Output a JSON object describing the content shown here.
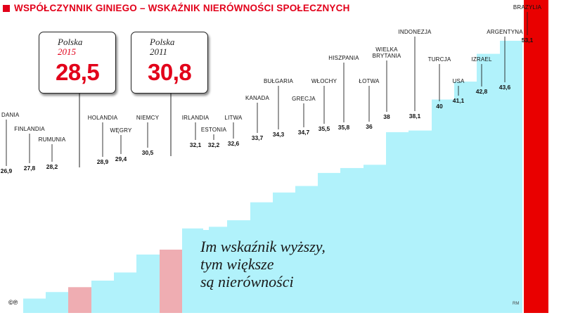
{
  "title": "WSPÓŁCZYNNIK GINIEGO – WSKAŹNIK NIERÓWNOŚCI SPOŁECZNYCH",
  "colors": {
    "accent": "#e2001a",
    "area": "#b1f2fb",
    "highlight": "#efadb2",
    "max_bar": "#e90000"
  },
  "chart_data": {
    "type": "bar",
    "title": "WSPÓŁCZYNNIK GINIEGO – WSKAŹNIK NIERÓWNOŚCI SPOŁECZNYCH",
    "categories": [
      "DANIA",
      "FINLANDIA",
      "RUMUNIA",
      "",
      "HOLANDIA",
      "WĘGRY",
      "NIEMCY",
      "",
      "IRLANDIA",
      "ESTONIA",
      "LITWA",
      "KANADA",
      "BUŁGARIA",
      "GRECJA",
      "WŁOCHY",
      "HISZPANIA",
      "ŁOTWA",
      "WIELKA BRYTANIA",
      "INDONEZJA",
      "TURCJA",
      "USA",
      "IZRAEL",
      "ARGENTYNA",
      "BRAZYLIA"
    ],
    "values": [
      26.9,
      27.8,
      28.2,
      28.5,
      28.9,
      29.4,
      30.5,
      30.8,
      32.1,
      32.2,
      32.6,
      33.7,
      34.3,
      34.7,
      35.5,
      35.8,
      36,
      38,
      38.1,
      40,
      41.1,
      42.8,
      43.6,
      53.1
    ],
    "value_labels": [
      "26,9",
      "27,8",
      "28,2",
      "",
      "28,9",
      "29,4",
      "30,5",
      "",
      "32,1",
      "32,2",
      "32,6",
      "33,7",
      "34,3",
      "34,7",
      "35,5",
      "35,8",
      "36",
      "38",
      "38,1",
      "40",
      "41,1",
      "42,8",
      "43,6",
      "53,1"
    ],
    "highlighted": [
      {
        "country": "Polska",
        "year": "2015",
        "value": 28.5,
        "label": "28,5"
      },
      {
        "country": "Polska",
        "year": "2011",
        "value": 30.8,
        "label": "30,8"
      }
    ],
    "xlabel": "",
    "ylabel": ""
  },
  "note": {
    "line1": "Im wskaźnik wyższy,",
    "line2": "tym większe",
    "line3": "są nierówności"
  },
  "copyright": "©℗",
  "credit": "RM"
}
